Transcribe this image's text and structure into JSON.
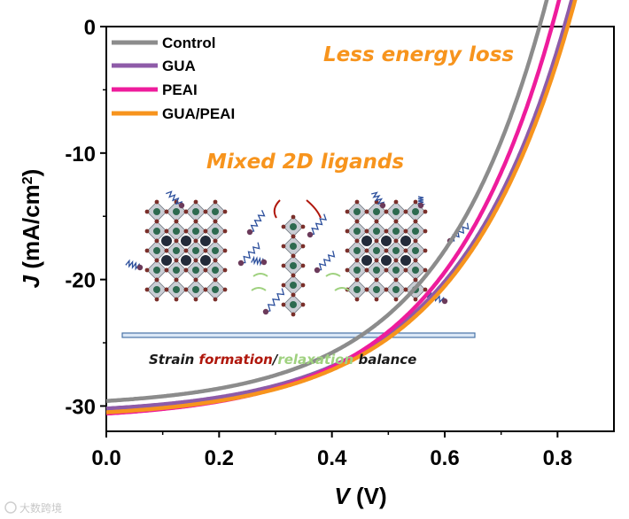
{
  "chart_data": {
    "type": "line",
    "xlabel_italic": "V",
    "xlabel_rest": " (V)",
    "ylabel_italic": "J",
    "ylabel_rest": " (mA/cm",
    "ylabel_sup": "2",
    "ylabel_end": ")",
    "xlim": [
      0.0,
      0.9
    ],
    "ylim": [
      -32,
      0
    ],
    "x_ticks": [
      0.0,
      0.2,
      0.4,
      0.6,
      0.8
    ],
    "x_tick_labels": [
      "0.0",
      "0.2",
      "0.4",
      "0.6",
      "0.8"
    ],
    "y_ticks": [
      0,
      -10,
      -20,
      -30
    ],
    "y_tick_labels": [
      "0",
      "-10",
      "-20",
      "-30"
    ],
    "legend_position": "top-left",
    "series": [
      {
        "name": "Control",
        "color": "#8c8c8c",
        "jsc": -29.6,
        "voc": 0.768,
        "knee": 0.635
      },
      {
        "name": "GUA",
        "color": "#8e5ba8",
        "jsc": -30.2,
        "voc": 0.812,
        "knee": 0.675
      },
      {
        "name": "PEAI",
        "color": "#ee1c9c",
        "jsc": -30.6,
        "voc": 0.79,
        "knee": 0.657
      },
      {
        "name": "GUA/PEAI",
        "color": "#f7941d",
        "jsc": -30.5,
        "voc": 0.818,
        "knee": 0.68
      }
    ],
    "annotations": {
      "less_energy_loss": "Less energy loss",
      "mixed_ligands": "Mixed 2D ligands",
      "accent_color": "#f7941d"
    },
    "caption": {
      "part1": "Strain ",
      "part2": "formation",
      "part3": "/",
      "part4": "relaxation",
      "part5": " balance",
      "formation_color": "#b0170c",
      "relaxation_color": "#9fd17f"
    }
  },
  "watermark": "大数跨境"
}
